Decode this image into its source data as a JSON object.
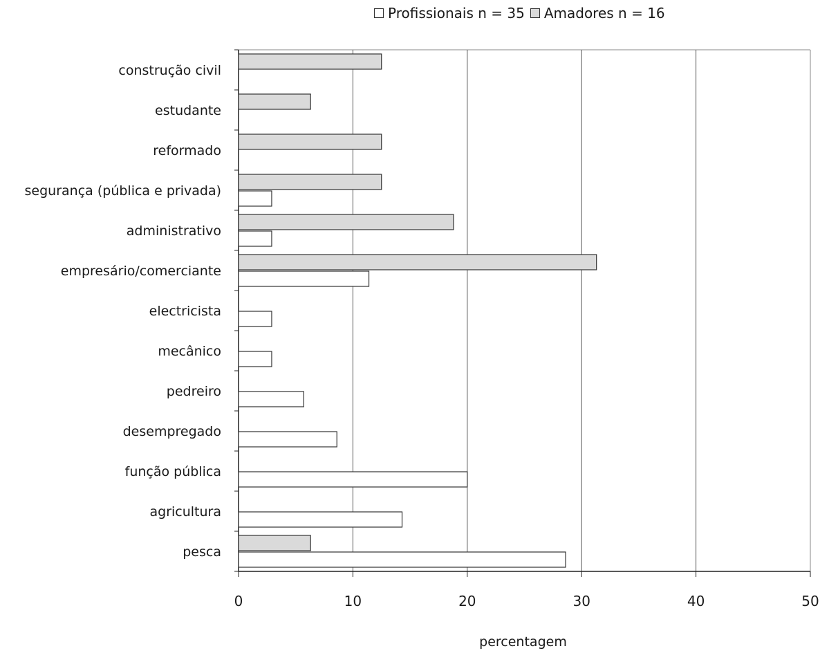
{
  "colors": {
    "profissionais": "#ffffff",
    "amadores": "#dadada",
    "bar_stroke": "#333333",
    "grid": "#555555"
  },
  "chart_data": {
    "type": "bar",
    "orientation": "horizontal",
    "categories": [
      "construção civil",
      "estudante",
      "reformado",
      "segurança (pública e privada)",
      "administrativo",
      "empresário/comerciante",
      "electricista",
      "mecânico",
      "pedreiro",
      "desempregado",
      "função pública",
      "agricultura",
      "pesca"
    ],
    "series": [
      {
        "name": "Profissionais n = 35",
        "color": "#ffffff",
        "values": [
          0,
          0,
          0,
          2.9,
          2.9,
          11.4,
          2.9,
          2.9,
          5.7,
          8.6,
          20.0,
          14.3,
          28.6
        ]
      },
      {
        "name": "Amadores n = 16",
        "color": "#dadada",
        "values": [
          12.5,
          6.3,
          12.5,
          12.5,
          18.8,
          31.3,
          0,
          0,
          0,
          0,
          0,
          0,
          6.3
        ]
      }
    ],
    "xlabel": "percentagem",
    "ylabel": "",
    "xlim": [
      0,
      50
    ],
    "xticks": [
      "0",
      "10",
      "20",
      "30",
      "40",
      "50"
    ],
    "grid": "vertical",
    "legend_position": "top-right"
  }
}
